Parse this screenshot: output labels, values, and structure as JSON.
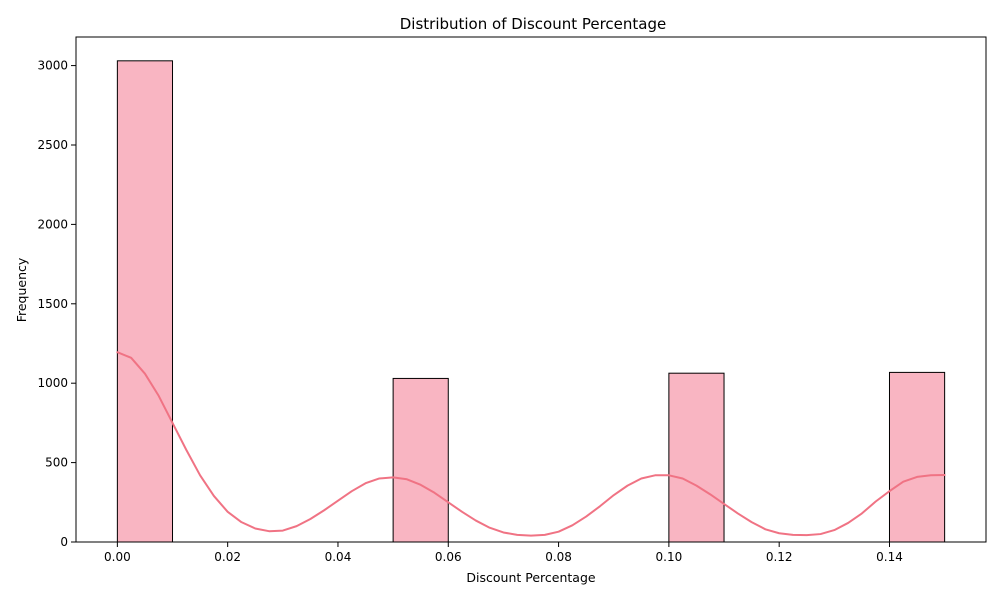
{
  "chart_data": {
    "type": "bar",
    "title": "Distribution of Discount Percentage",
    "xlabel": "Discount Percentage",
    "ylabel": "Frequency",
    "xlim": [
      -0.0075,
      0.1575
    ],
    "ylim": [
      0,
      3180
    ],
    "xticks": [
      0.0,
      0.02,
      0.04,
      0.06,
      0.08,
      0.1,
      0.12,
      0.14
    ],
    "xtick_labels": [
      "0.00",
      "0.02",
      "0.04",
      "0.06",
      "0.08",
      "0.10",
      "0.12",
      "0.14"
    ],
    "yticks": [
      0,
      500,
      1000,
      1500,
      2000,
      2500,
      3000
    ],
    "ytick_labels": [
      "0",
      "500",
      "1000",
      "1500",
      "2000",
      "2500",
      "3000"
    ],
    "grid": false,
    "bins": [
      {
        "start": 0.0,
        "end": 0.01,
        "count": 3030
      },
      {
        "start": 0.05,
        "end": 0.06,
        "count": 1030
      },
      {
        "start": 0.1,
        "end": 0.11,
        "count": 1063
      },
      {
        "start": 0.14,
        "end": 0.15,
        "count": 1068
      }
    ],
    "kde": {
      "x": [
        0.0,
        0.0025,
        0.005,
        0.0075,
        0.01,
        0.0125,
        0.015,
        0.0175,
        0.02,
        0.0225,
        0.025,
        0.0275,
        0.03,
        0.0325,
        0.035,
        0.0375,
        0.04,
        0.0425,
        0.045,
        0.0475,
        0.05,
        0.0525,
        0.055,
        0.0575,
        0.06,
        0.0625,
        0.065,
        0.0675,
        0.07,
        0.0725,
        0.075,
        0.0775,
        0.08,
        0.0825,
        0.085,
        0.0875,
        0.09,
        0.0925,
        0.095,
        0.0975,
        0.1,
        0.1025,
        0.105,
        0.1075,
        0.11,
        0.1125,
        0.115,
        0.1175,
        0.12,
        0.1225,
        0.125,
        0.1275,
        0.13,
        0.1325,
        0.135,
        0.1375,
        0.14,
        0.1425,
        0.145,
        0.1475,
        0.15
      ],
      "y": [
        1195,
        1160,
        1060,
        920,
        750,
        580,
        420,
        290,
        190,
        125,
        85,
        68,
        72,
        100,
        145,
        200,
        260,
        320,
        370,
        400,
        407,
        395,
        360,
        310,
        250,
        190,
        135,
        90,
        60,
        45,
        40,
        45,
        65,
        105,
        160,
        225,
        295,
        355,
        400,
        420,
        420,
        400,
        355,
        300,
        240,
        180,
        125,
        80,
        55,
        45,
        43,
        50,
        75,
        120,
        180,
        255,
        320,
        380,
        410,
        420,
        422
      ]
    },
    "colors": {
      "bar_fill": "#f9b5c2",
      "bar_edge": "#000000",
      "kde_line": "#f07384"
    }
  }
}
